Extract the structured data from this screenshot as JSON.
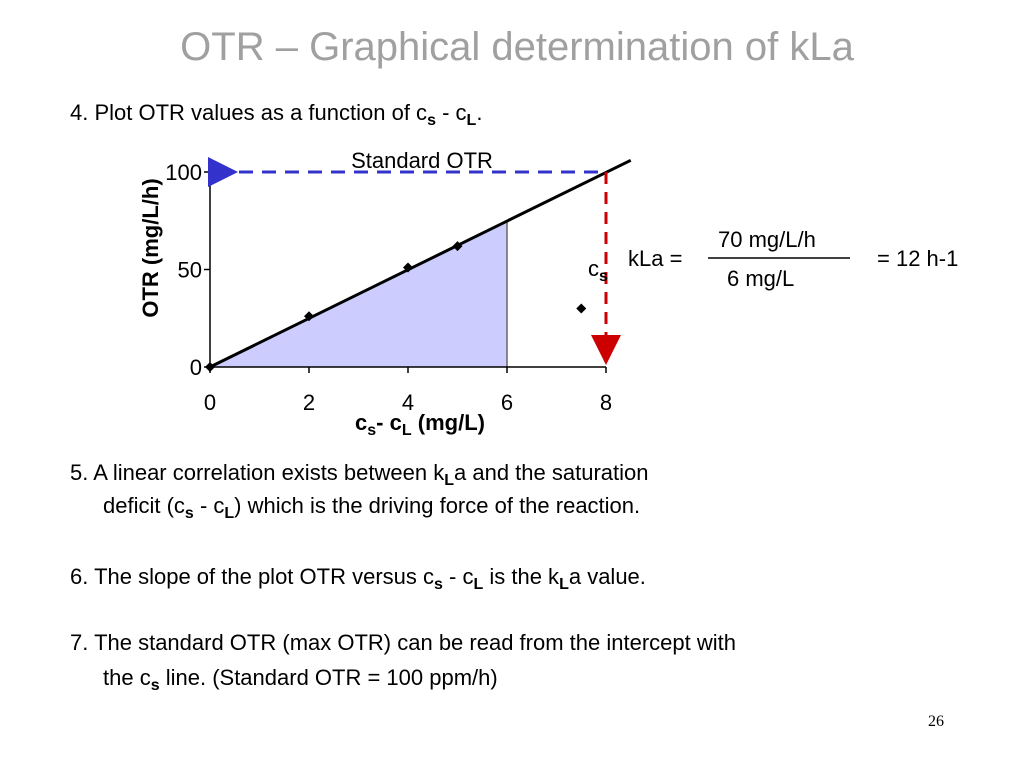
{
  "title": "OTR – Graphical determination of kLa",
  "step4": [
    "4. Plot OTR values as a function of c",
    "s",
    " - c",
    "L",
    "."
  ],
  "chart_data": {
    "type": "scatter",
    "y_label": "OTR (mg/L/h)",
    "x_label": [
      "c",
      "s",
      "- c",
      "L",
      " (mg/L)"
    ],
    "x": [
      0,
      2,
      4,
      5,
      7.5
    ],
    "values": [
      0,
      26,
      51,
      62,
      30
    ],
    "color": "#000000",
    "xlim": [
      0,
      8
    ],
    "ylim": [
      0,
      100
    ],
    "xticks": [
      0,
      2,
      4,
      6,
      8
    ],
    "yticks": [
      0,
      50,
      100
    ],
    "fit_line": {
      "x": [
        0,
        8.5
      ],
      "y": [
        0,
        106
      ],
      "color": "#000000"
    },
    "shaded_area": {
      "x": [
        0,
        6
      ],
      "y": [
        0,
        75
      ],
      "color": "#ccccff"
    },
    "standard_otr": {
      "text": "Standard OTR",
      "y": 100,
      "color": "#3333cc"
    },
    "saturation": {
      "label": [
        "c",
        "s"
      ],
      "x": 8,
      "color": "#cc0000"
    }
  },
  "equation": {
    "lhs": "kLa =",
    "numerator": "70 mg/L/h",
    "denominator": "6 mg/L",
    "result": "= 12 h-1"
  },
  "step5": [
    [
      "5. A linear correlation exists between k",
      "L",
      "a and the saturation"
    ],
    [
      "deficit (c",
      "s",
      " - c",
      "L",
      ") which is the driving force of the reaction."
    ]
  ],
  "step6": [
    "6. The slope of the plot OTR versus c",
    "s",
    " - c",
    "L",
    " is the k",
    "L",
    "a value."
  ],
  "step7": [
    [
      "7. The standard OTR (max OTR) can be read from the intercept with"
    ],
    [
      "the c",
      "s",
      " line.  (Standard OTR = 100 ppm/h)"
    ]
  ],
  "page_number": "26"
}
